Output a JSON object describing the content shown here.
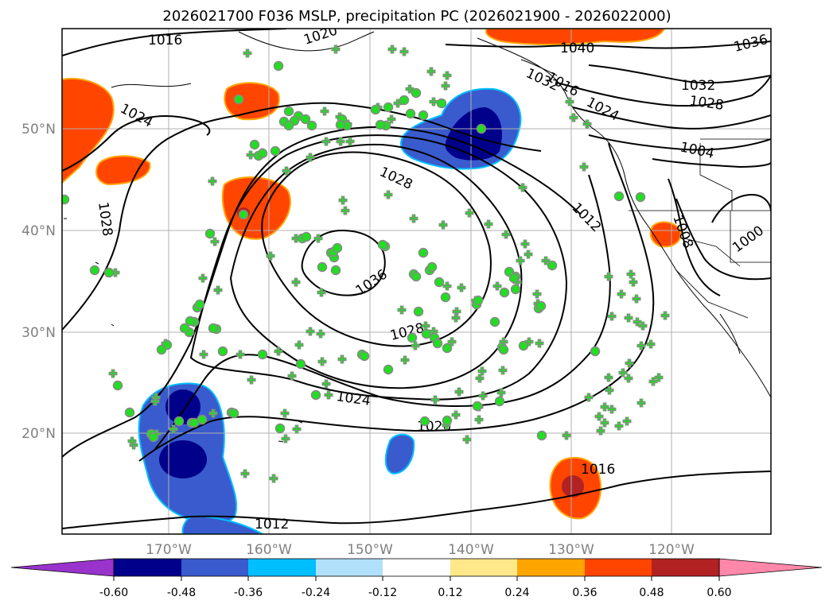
{
  "title": "2026021700 F036 MSLP, precipitation PC (2026021900 - 2026022000)",
  "lat_labels": [
    "50°N",
    "40°N",
    "30°N",
    "20°N"
  ],
  "lon_labels": [
    "170°W",
    "160°W",
    "150°W",
    "140°W",
    "130°W",
    "120°W"
  ],
  "colorbar": {
    "tick_labels": [
      "-0.60",
      "-0.48",
      "-0.36",
      "-0.24",
      "-0.12",
      "0.12",
      "0.24",
      "0.36",
      "0.48",
      "0.60"
    ],
    "colors": [
      "#9933cc",
      "#00008b",
      "#3a5bcd",
      "#00bfff",
      "#b0e0fa",
      "#ffffff",
      "#ffe88a",
      "#ffa500",
      "#ff4500",
      "#b22222",
      "#ff88aa"
    ]
  },
  "contour_labels": [
    "1016",
    "1020",
    "1024",
    "1028",
    "1028",
    "1028",
    "1036",
    "1032",
    "1024",
    "1020",
    "1016",
    "1012",
    "1040",
    "1036",
    "1032",
    "1028",
    "1024",
    "1016",
    "1012",
    "1008",
    "1004",
    "1000"
  ],
  "colors": {
    "marker_fill": "#22dd22",
    "marker_stroke": "#888888",
    "grid": "#b0b0b0",
    "negative_dark": "#00008b",
    "negative": "#3a5bcd",
    "positive": "#ff4500",
    "positive_dark": "#b22222"
  },
  "icons": [
    "plus-marker",
    "circle-marker"
  ]
}
